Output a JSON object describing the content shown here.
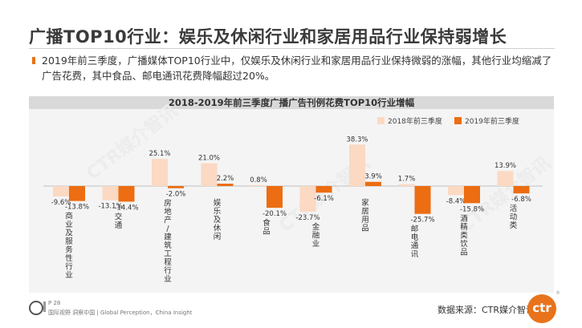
{
  "title": "广播TOP10行业：娱乐及休闲行业和家居用品行业保持弱增长",
  "description": "2019年前三季度，广播媒体TOP10行业中，仅娱乐及休闲行业和家居用品行业保持微弱的涨幅，其他行业均缩减了广告花费，其中食品、邮电通讯花费降幅超过20%。",
  "watermark": "CTR媒介智讯",
  "footer": {
    "page": "P 28",
    "tagline": "国际视野 洞察中国 | Global Perception，China Insight",
    "source": "数据来源：CTR媒介智讯",
    "logo": "ctr",
    "reg": "®"
  },
  "colors": {
    "series2018": "#fbd9c3",
    "series2019": "#ec6d12",
    "accent": "#e8731c"
  },
  "chart_data": {
    "type": "bar",
    "title": "2018-2019年前三季度广播广告刊例花费TOP10行业增幅",
    "categories": [
      "商业及服务性行业",
      "交通",
      "房地产/建筑工程行业",
      "娱乐及休闲",
      "食品",
      "金融业",
      "家居用品",
      "邮电通讯",
      "酒精类饮品",
      "活动类"
    ],
    "series": [
      {
        "name": "2018年前三季度",
        "values": [
          -9.6,
          -13.1,
          25.1,
          21.0,
          0.8,
          -23.7,
          38.3,
          1.7,
          -8.4,
          13.9
        ],
        "labels": [
          "-9.6%",
          "-13.1%",
          "25.1%",
          "21.0%",
          "0.8%",
          "-23.7%",
          "38.3%",
          "1.7%",
          "-8.4%",
          "13.9%"
        ]
      },
      {
        "name": "2019年前三季度",
        "values": [
          -13.8,
          -14.4,
          -2.0,
          2.2,
          -20.1,
          -6.1,
          3.9,
          -25.7,
          -15.8,
          -6.8
        ],
        "labels": [
          "-13.8%",
          "-14.4%",
          "-2.0%",
          "2.2%",
          "-20.1%",
          "-6.1%",
          "3.9%",
          "-25.7%",
          "-15.8%",
          "-6.8%"
        ]
      }
    ],
    "legend_position": "top-right",
    "grid": false
  }
}
